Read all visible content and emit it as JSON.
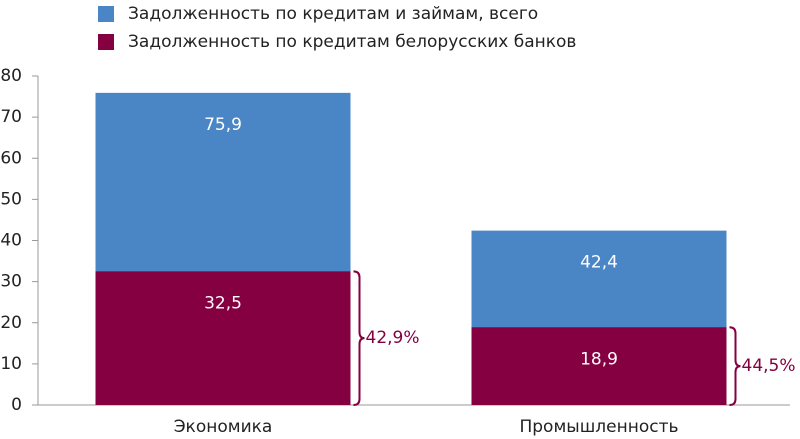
{
  "chart_data": {
    "type": "bar",
    "categories": [
      "Экономика",
      "Промышленность"
    ],
    "series": [
      {
        "name": "Задолженность по кредитам и займам, всего",
        "color": "#4a86c5",
        "values": [
          75.9,
          42.4
        ],
        "value_labels": [
          "75,9",
          "42,4"
        ]
      },
      {
        "name": "Задолженность по кредитам белорусских банков",
        "color": "#850040",
        "values": [
          32.5,
          18.9
        ],
        "value_labels": [
          "32,5",
          "18,9"
        ]
      }
    ],
    "share_labels": [
      "42,9%",
      "44,5%"
    ],
    "ylim": [
      0,
      80
    ],
    "yticks": [
      0,
      10,
      20,
      30,
      40,
      50,
      60,
      70,
      80
    ],
    "grid": false
  }
}
